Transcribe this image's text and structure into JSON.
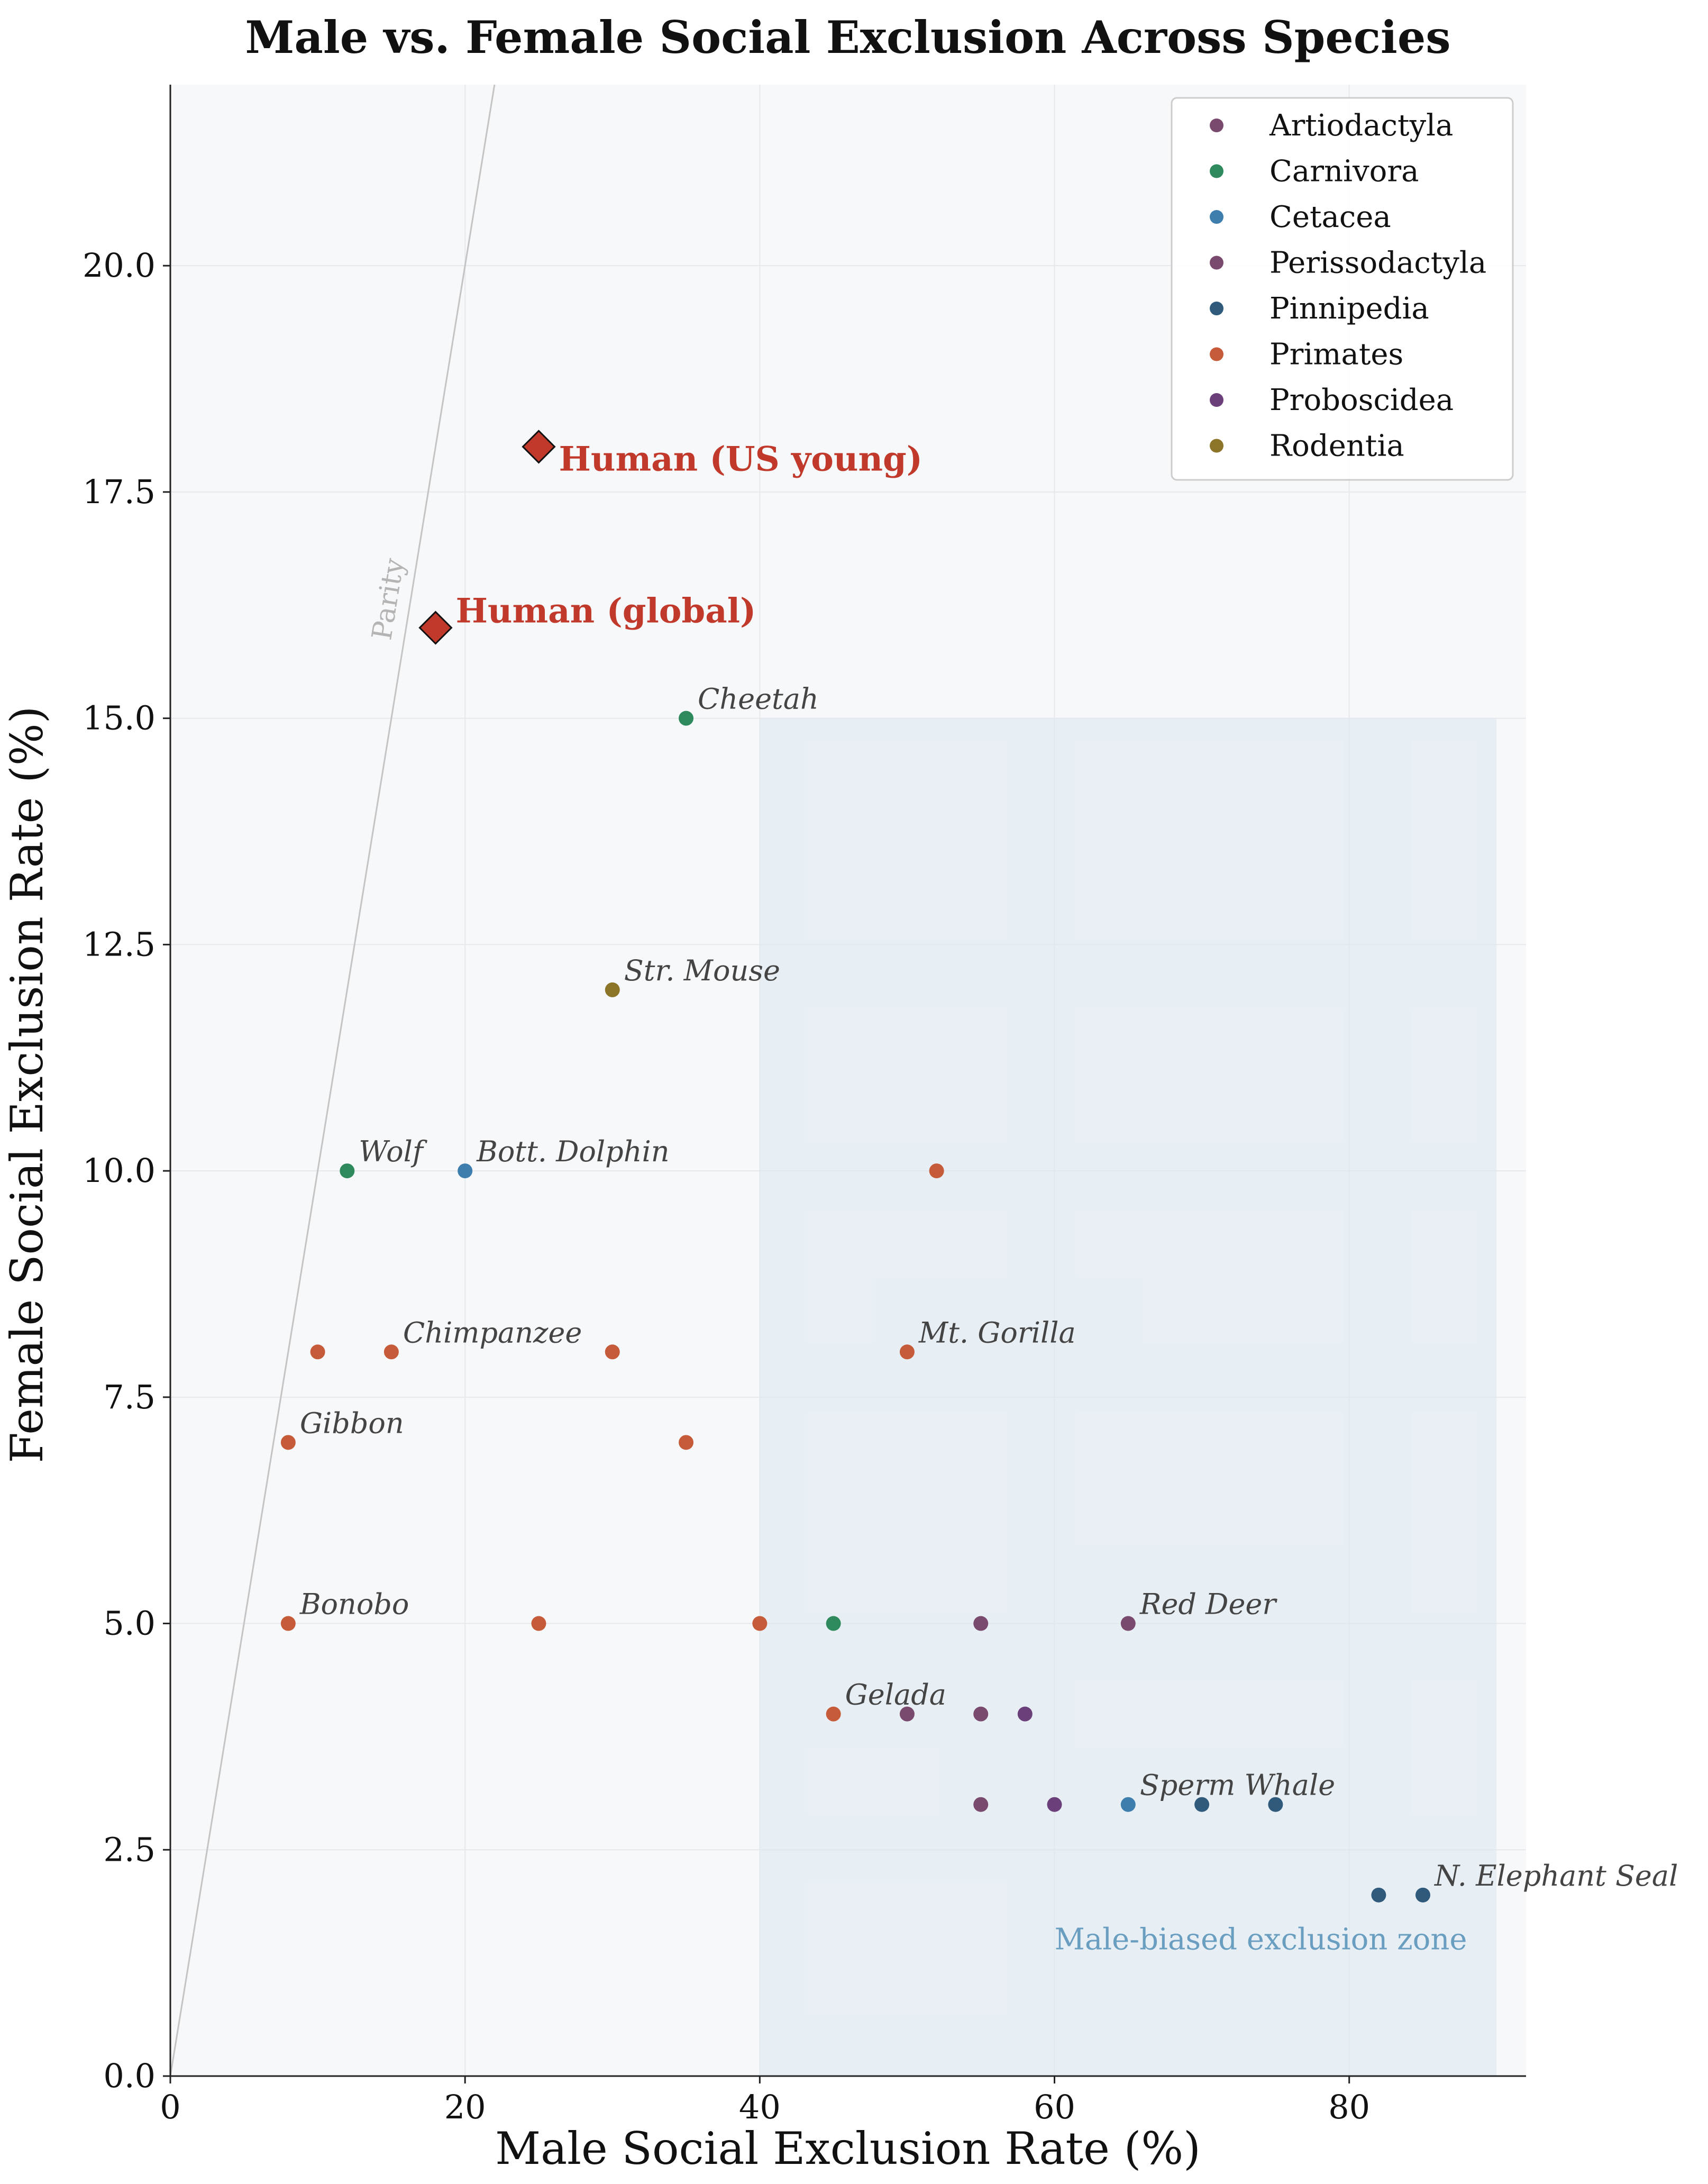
{
  "chart_data": {
    "type": "scatter",
    "title": "Male vs. Female Social Exclusion Across Species",
    "xlabel": "Male Social Exclusion Rate (%)",
    "ylabel": "Female Social Exclusion Rate (%)",
    "xlim": [
      0,
      92
    ],
    "ylim": [
      0,
      22
    ],
    "x_ticks": [
      0,
      20,
      40,
      60,
      80
    ],
    "x_tick_labels": [
      "0",
      "20",
      "40",
      "60",
      "80"
    ],
    "y_ticks": [
      0,
      2.5,
      5,
      7.5,
      10,
      12.5,
      15,
      17.5,
      20
    ],
    "y_tick_labels": [
      "0.0",
      "2.5",
      "5.0",
      "7.5",
      "10.0",
      "12.5",
      "15.0",
      "17.5",
      "20.0"
    ],
    "grid": true,
    "legend_position": "top-right",
    "parity_line": {
      "label": "Parity",
      "slope": 1
    },
    "shaded_zone": {
      "label": "Male-biased exclusion zone",
      "x_range": [
        40,
        90
      ],
      "y_range": [
        0,
        15
      ]
    },
    "series": [
      {
        "name": "Artiodactyla",
        "color": "#7a4a6e",
        "points": [
          {
            "x": 55,
            "y": 5
          },
          {
            "x": 65,
            "y": 5,
            "label": "Red Deer"
          },
          {
            "x": 50,
            "y": 4
          },
          {
            "x": 55,
            "y": 4
          },
          {
            "x": 55,
            "y": 3
          }
        ]
      },
      {
        "name": "Carnivora",
        "color": "#2e8a5c",
        "points": [
          {
            "x": 35,
            "y": 15,
            "label": "Cheetah"
          },
          {
            "x": 12,
            "y": 10,
            "label": "Wolf"
          },
          {
            "x": 45,
            "y": 5
          }
        ]
      },
      {
        "name": "Cetacea",
        "color": "#3d7eae",
        "points": [
          {
            "x": 20,
            "y": 10,
            "label": "Bott. Dolphin"
          },
          {
            "x": 65,
            "y": 3,
            "label": "Sperm Whale"
          }
        ]
      },
      {
        "name": "Perissodactyla",
        "color": "#7a4a6e",
        "points": []
      },
      {
        "name": "Pinnipedia",
        "color": "#2f5a7c",
        "points": [
          {
            "x": 70,
            "y": 3
          },
          {
            "x": 75,
            "y": 3
          },
          {
            "x": 82,
            "y": 2
          },
          {
            "x": 85,
            "y": 2,
            "label": "N. Elephant Seal"
          }
        ]
      },
      {
        "name": "Primates",
        "color": "#c65b3a",
        "points": [
          {
            "x": 52,
            "y": 10
          },
          {
            "x": 10,
            "y": 8
          },
          {
            "x": 15,
            "y": 8,
            "label": "Chimpanzee"
          },
          {
            "x": 30,
            "y": 8
          },
          {
            "x": 50,
            "y": 8,
            "label": "Mt. Gorilla"
          },
          {
            "x": 8,
            "y": 7,
            "label": "Gibbon"
          },
          {
            "x": 35,
            "y": 7
          },
          {
            "x": 8,
            "y": 5,
            "label": "Bonobo"
          },
          {
            "x": 25,
            "y": 5
          },
          {
            "x": 40,
            "y": 5
          },
          {
            "x": 45,
            "y": 4,
            "label": "Gelada"
          }
        ]
      },
      {
        "name": "Proboscidea",
        "color": "#6b3f7a",
        "points": [
          {
            "x": 58,
            "y": 4
          },
          {
            "x": 60,
            "y": 3
          }
        ]
      },
      {
        "name": "Rodentia",
        "color": "#8c7428",
        "points": [
          {
            "x": 30,
            "y": 12,
            "label": "Str. Mouse"
          }
        ]
      }
    ],
    "highlight_points": [
      {
        "label": "Human (US young)",
        "x": 25,
        "y": 18,
        "color": "#c0392b"
      },
      {
        "label": "Human (global)",
        "x": 18,
        "y": 16,
        "color": "#c0392b"
      }
    ]
  }
}
